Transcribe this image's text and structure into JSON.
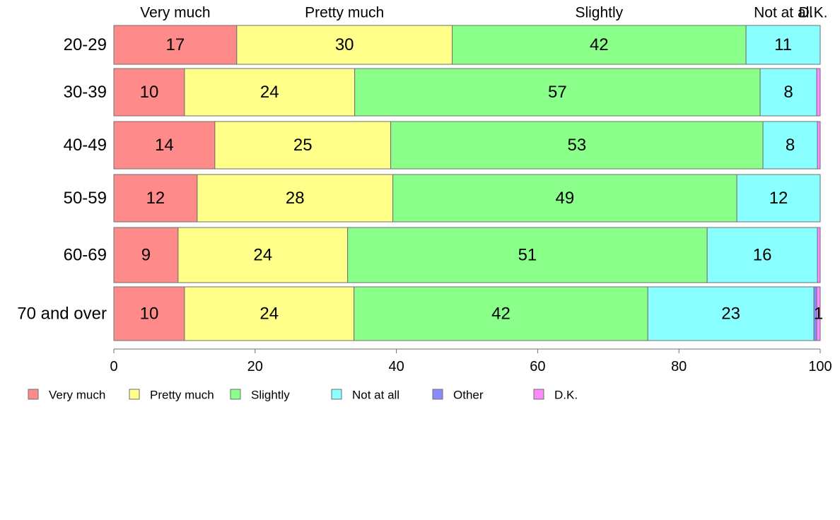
{
  "chart_data": {
    "type": "bar",
    "orientation": "horizontal",
    "stacked": true,
    "categories": [
      "20-29",
      "30-39",
      "40-49",
      "50-59",
      "60-69",
      "70 and over"
    ],
    "series": [
      {
        "name": "Very much",
        "color": "#ff8a8a",
        "values": [
          17.4,
          10.0,
          14.3,
          11.8,
          9.1,
          10.0
        ],
        "labels": [
          "17",
          "10",
          "14",
          "12",
          "9",
          "10"
        ]
      },
      {
        "name": "Pretty much",
        "color": "#ffff8a",
        "values": [
          30.5,
          24.1,
          24.9,
          27.7,
          24.0,
          24.0
        ],
        "labels": [
          "30",
          "24",
          "25",
          "28",
          "24",
          "24"
        ]
      },
      {
        "name": "Slightly",
        "color": "#8aff8a",
        "values": [
          41.6,
          57.4,
          52.7,
          48.7,
          50.9,
          41.6
        ],
        "labels": [
          "42",
          "57",
          "53",
          "49",
          "51",
          "42"
        ]
      },
      {
        "name": "Not at all",
        "color": "#8affff",
        "values": [
          10.5,
          8.0,
          7.7,
          11.8,
          15.6,
          23.5
        ],
        "labels": [
          "11",
          "8",
          "8",
          "12",
          "16",
          "23"
        ]
      },
      {
        "name": "Other",
        "color": "#8a8aff",
        "values": [
          0.0,
          0.0,
          0.0,
          0.0,
          0.0,
          0.4
        ],
        "labels": [
          "",
          "",
          "",
          "",
          "",
          ""
        ]
      },
      {
        "name": "D.K.",
        "color": "#ff8aff",
        "values": [
          0.0,
          0.5,
          0.4,
          0.0,
          0.4,
          0.5
        ],
        "labels": [
          "",
          "",
          "",
          "",
          "",
          "1"
        ]
      }
    ],
    "top_labels": [
      "Very much",
      "Pretty much",
      "Slightly",
      "Not at all",
      "D.K."
    ],
    "xlim": [
      0,
      100
    ],
    "xticks": [
      "0",
      "20",
      "40",
      "60",
      "80",
      "100"
    ],
    "xlabel": "",
    "ylabel": "",
    "title": "",
    "legend": {
      "placement": "bottom",
      "entries": [
        "Very much",
        "Pretty much",
        "Slightly",
        "Not at all",
        "Other",
        "D.K."
      ]
    },
    "grid": false
  }
}
